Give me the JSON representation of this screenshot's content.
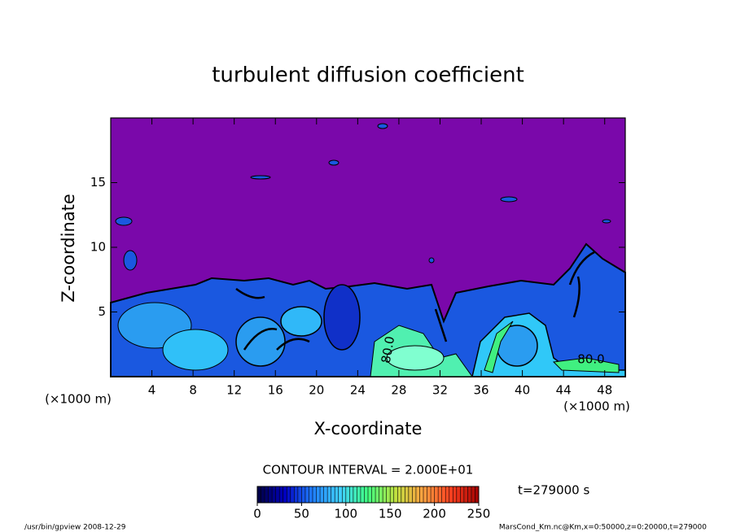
{
  "chart_data": {
    "type": "contour",
    "title": "turbulent diffusion coefficient",
    "x_label": "X-coordinate",
    "y_label": "Z-coordinate",
    "x_unit": "(×1000 m)",
    "y_unit": "(×1000 m)",
    "xlim": [
      0,
      50
    ],
    "ylim": [
      0,
      20
    ],
    "xticks": [
      4,
      8,
      12,
      16,
      20,
      24,
      28,
      32,
      36,
      40,
      44,
      48
    ],
    "yticks": [
      5,
      10,
      15
    ],
    "contour_labels": [
      "80.0",
      "80.0"
    ],
    "contour_interval": "CONTOUR INTERVAL = 2.000E+01",
    "time_label": "t=279000 s",
    "colorbar": {
      "clim": [
        0,
        250
      ],
      "ticks": [
        0,
        50,
        100,
        150,
        200,
        250
      ],
      "colormap": [
        "#000040",
        "#0000c0",
        "#2080ff",
        "#40d0ff",
        "#40ff80",
        "#c0e040",
        "#ffa040",
        "#ff4020",
        "#a00000"
      ]
    },
    "footer_left": "/usr/bin/gpview   2008-12-29",
    "footer_right": "MarsCond_Km.nc@Km,x=0:50000,z=0:20000,t=279000"
  }
}
